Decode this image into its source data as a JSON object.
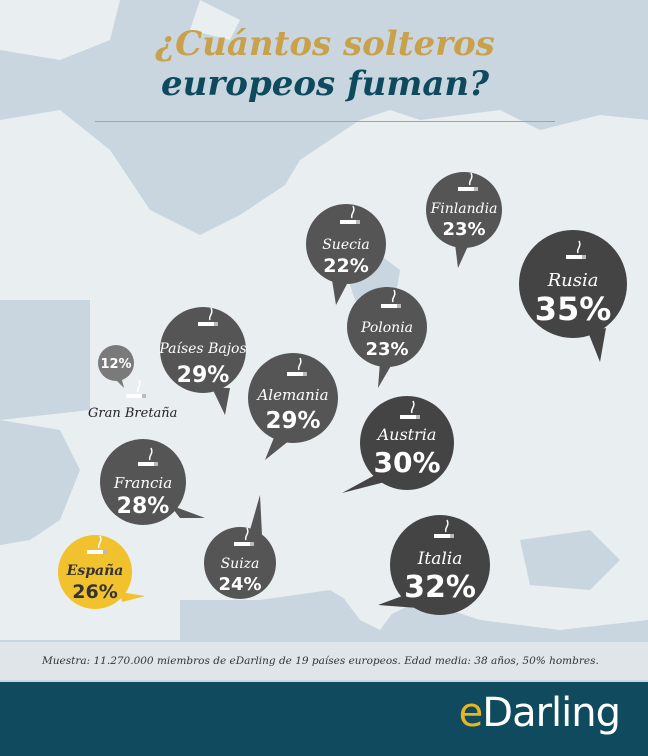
{
  "title": {
    "line1": "¿Cuántos solteros",
    "line2": "europeos fuman?"
  },
  "countries": [
    {
      "id": "gran-bretana",
      "name": "Gran Bretaña",
      "value": "12%"
    },
    {
      "id": "paises-bajos",
      "name": "Países Bajos",
      "value": "29%"
    },
    {
      "id": "francia",
      "name": "Francia",
      "value": "28%"
    },
    {
      "id": "espana",
      "name": "España",
      "value": "26%"
    },
    {
      "id": "suiza",
      "name": "Suiza",
      "value": "24%"
    },
    {
      "id": "alemania",
      "name": "Alemania",
      "value": "29%"
    },
    {
      "id": "suecia",
      "name": "Suecia",
      "value": "22%"
    },
    {
      "id": "finlandia",
      "name": "Finlandia",
      "value": "23%"
    },
    {
      "id": "polonia",
      "name": "Polonia",
      "value": "23%"
    },
    {
      "id": "austria",
      "name": "Austria",
      "value": "30%"
    },
    {
      "id": "italia",
      "name": "Italia",
      "value": "32%"
    },
    {
      "id": "rusia",
      "name": "Rusia",
      "value": "35%"
    }
  ],
  "footnote": "Muestra: 11.270.000 miembros de eDarling de 19 países europeos. Edad media: 38 años, 50% hombres.",
  "brand": {
    "e": "e",
    "rest": "Darling"
  },
  "colors": {
    "bubble_dark": "#4a4a4a",
    "bubble_mid": "#5a5a5a",
    "highlight": "#f2c12e",
    "gold": "#c9a14a",
    "teal": "#0d4a5e"
  }
}
